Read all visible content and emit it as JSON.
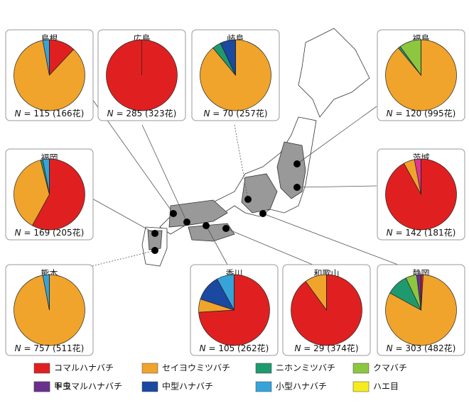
{
  "chart_data": [
    {
      "type": "pie",
      "title": "島根",
      "values": [
        12,
        85,
        0,
        0,
        0,
        0,
        3,
        0,
        0
      ],
      "sample_label": "N",
      "sample_text": " = 115 (166花)"
    },
    {
      "type": "pie",
      "title": "広島",
      "values": [
        100,
        0,
        0,
        0,
        0,
        0,
        0,
        0,
        0
      ],
      "sample_label": "N",
      "sample_text": " = 285 (323花)"
    },
    {
      "type": "pie",
      "title": "岐阜",
      "values": [
        0,
        89,
        4,
        0,
        0,
        7,
        0,
        0,
        0
      ],
      "sample_label": "N",
      "sample_text": " = 70 (257花)"
    },
    {
      "type": "pie",
      "title": "福島",
      "values": [
        0,
        89,
        1,
        10,
        0,
        0,
        0,
        0,
        0
      ],
      "sample_label": "N",
      "sample_text": " = 120 (995花)"
    },
    {
      "type": "pie",
      "title": "福岡",
      "values": [
        58,
        38,
        1,
        0,
        0,
        0,
        3,
        0,
        0
      ],
      "sample_label": "N",
      "sample_text": " = 169 (205花)"
    },
    {
      "type": "pie",
      "title": "茨城",
      "values": [
        92,
        5,
        0,
        0,
        3,
        0,
        0,
        0,
        0
      ],
      "sample_label": "N",
      "sample_text": " = 142 (181花)"
    },
    {
      "type": "pie",
      "title": "熊本",
      "values": [
        0,
        97,
        0,
        0,
        0,
        0,
        3,
        0,
        0
      ],
      "sample_label": "N",
      "sample_text": " = 757 (511花)"
    },
    {
      "type": "pie",
      "title": "香川",
      "values": [
        74,
        6,
        0,
        0,
        0,
        12,
        8,
        0,
        0
      ],
      "sample_label": "N",
      "sample_text": " = 105 (262花)"
    },
    {
      "type": "pie",
      "title": "和歌山",
      "values": [
        90,
        10,
        0,
        0,
        0,
        0,
        0,
        0,
        0
      ],
      "sample_label": "N",
      "sample_text": " = 29 (374花)"
    },
    {
      "type": "pie",
      "title": "静岡",
      "values": [
        1,
        82,
        10,
        5,
        0,
        0,
        0,
        0,
        2
      ],
      "sample_label": "N",
      "sample_text": " = 303 (482花)"
    }
  ],
  "legend": {
    "categories": [
      "コマルハナバチ",
      "セイヨウミツバチ",
      "ニホンミツバチ",
      "クマバチ",
      "トラマルハナバチ",
      "中型ハナバチ",
      "小型ハナバチ",
      "ハエ目",
      "甲虫"
    ],
    "colors": [
      "#e02020",
      "#f0a42c",
      "#1f9a6e",
      "#8dc63f",
      "#e0358f",
      "#1b48a0",
      "#36a4d8",
      "#f5ec1e",
      "#6b2f8f"
    ]
  }
}
